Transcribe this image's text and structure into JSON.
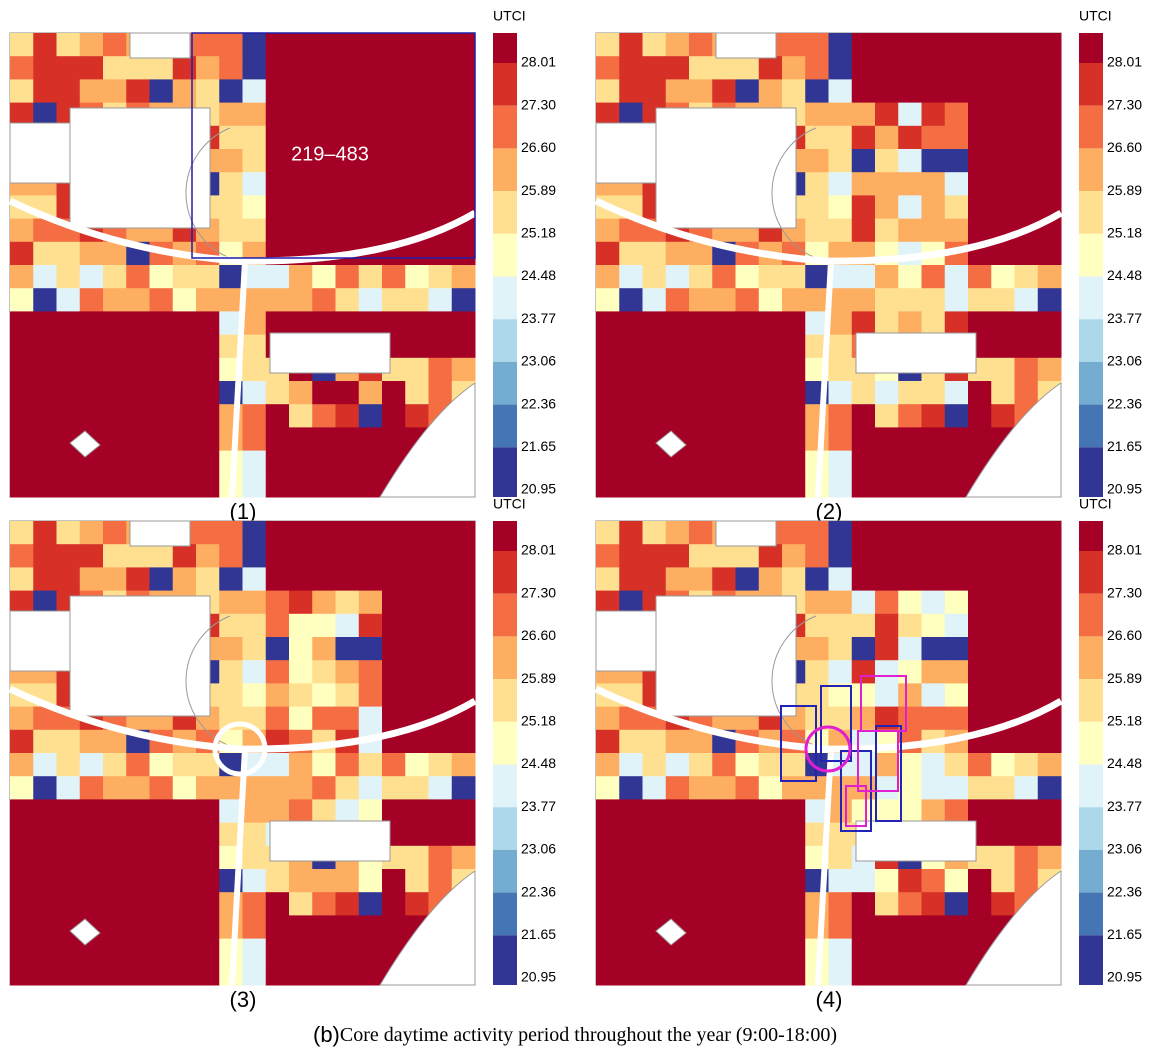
{
  "panels": [
    {
      "label": "(1)",
      "annotation": "219–483"
    },
    {
      "label": "(2)"
    },
    {
      "label": "(3)"
    },
    {
      "label": "(4)"
    }
  ],
  "legend": {
    "title": "UTCI",
    "ticks": [
      "28.01",
      "27.30",
      "26.60",
      "25.89",
      "25.18",
      "24.48",
      "23.77",
      "23.06",
      "22.36",
      "21.65",
      "20.95"
    ],
    "colors": [
      "#a50026",
      "#d73027",
      "#f46d43",
      "#fdae61",
      "#fee090",
      "#ffffbf",
      "#e0f3f8",
      "#abd9e9",
      "#74add1",
      "#4575b4",
      "#313695"
    ]
  },
  "caption": {
    "prefix": "(b)",
    "text": "Core daytime activity period throughout the year (9:00-18:00)"
  }
}
